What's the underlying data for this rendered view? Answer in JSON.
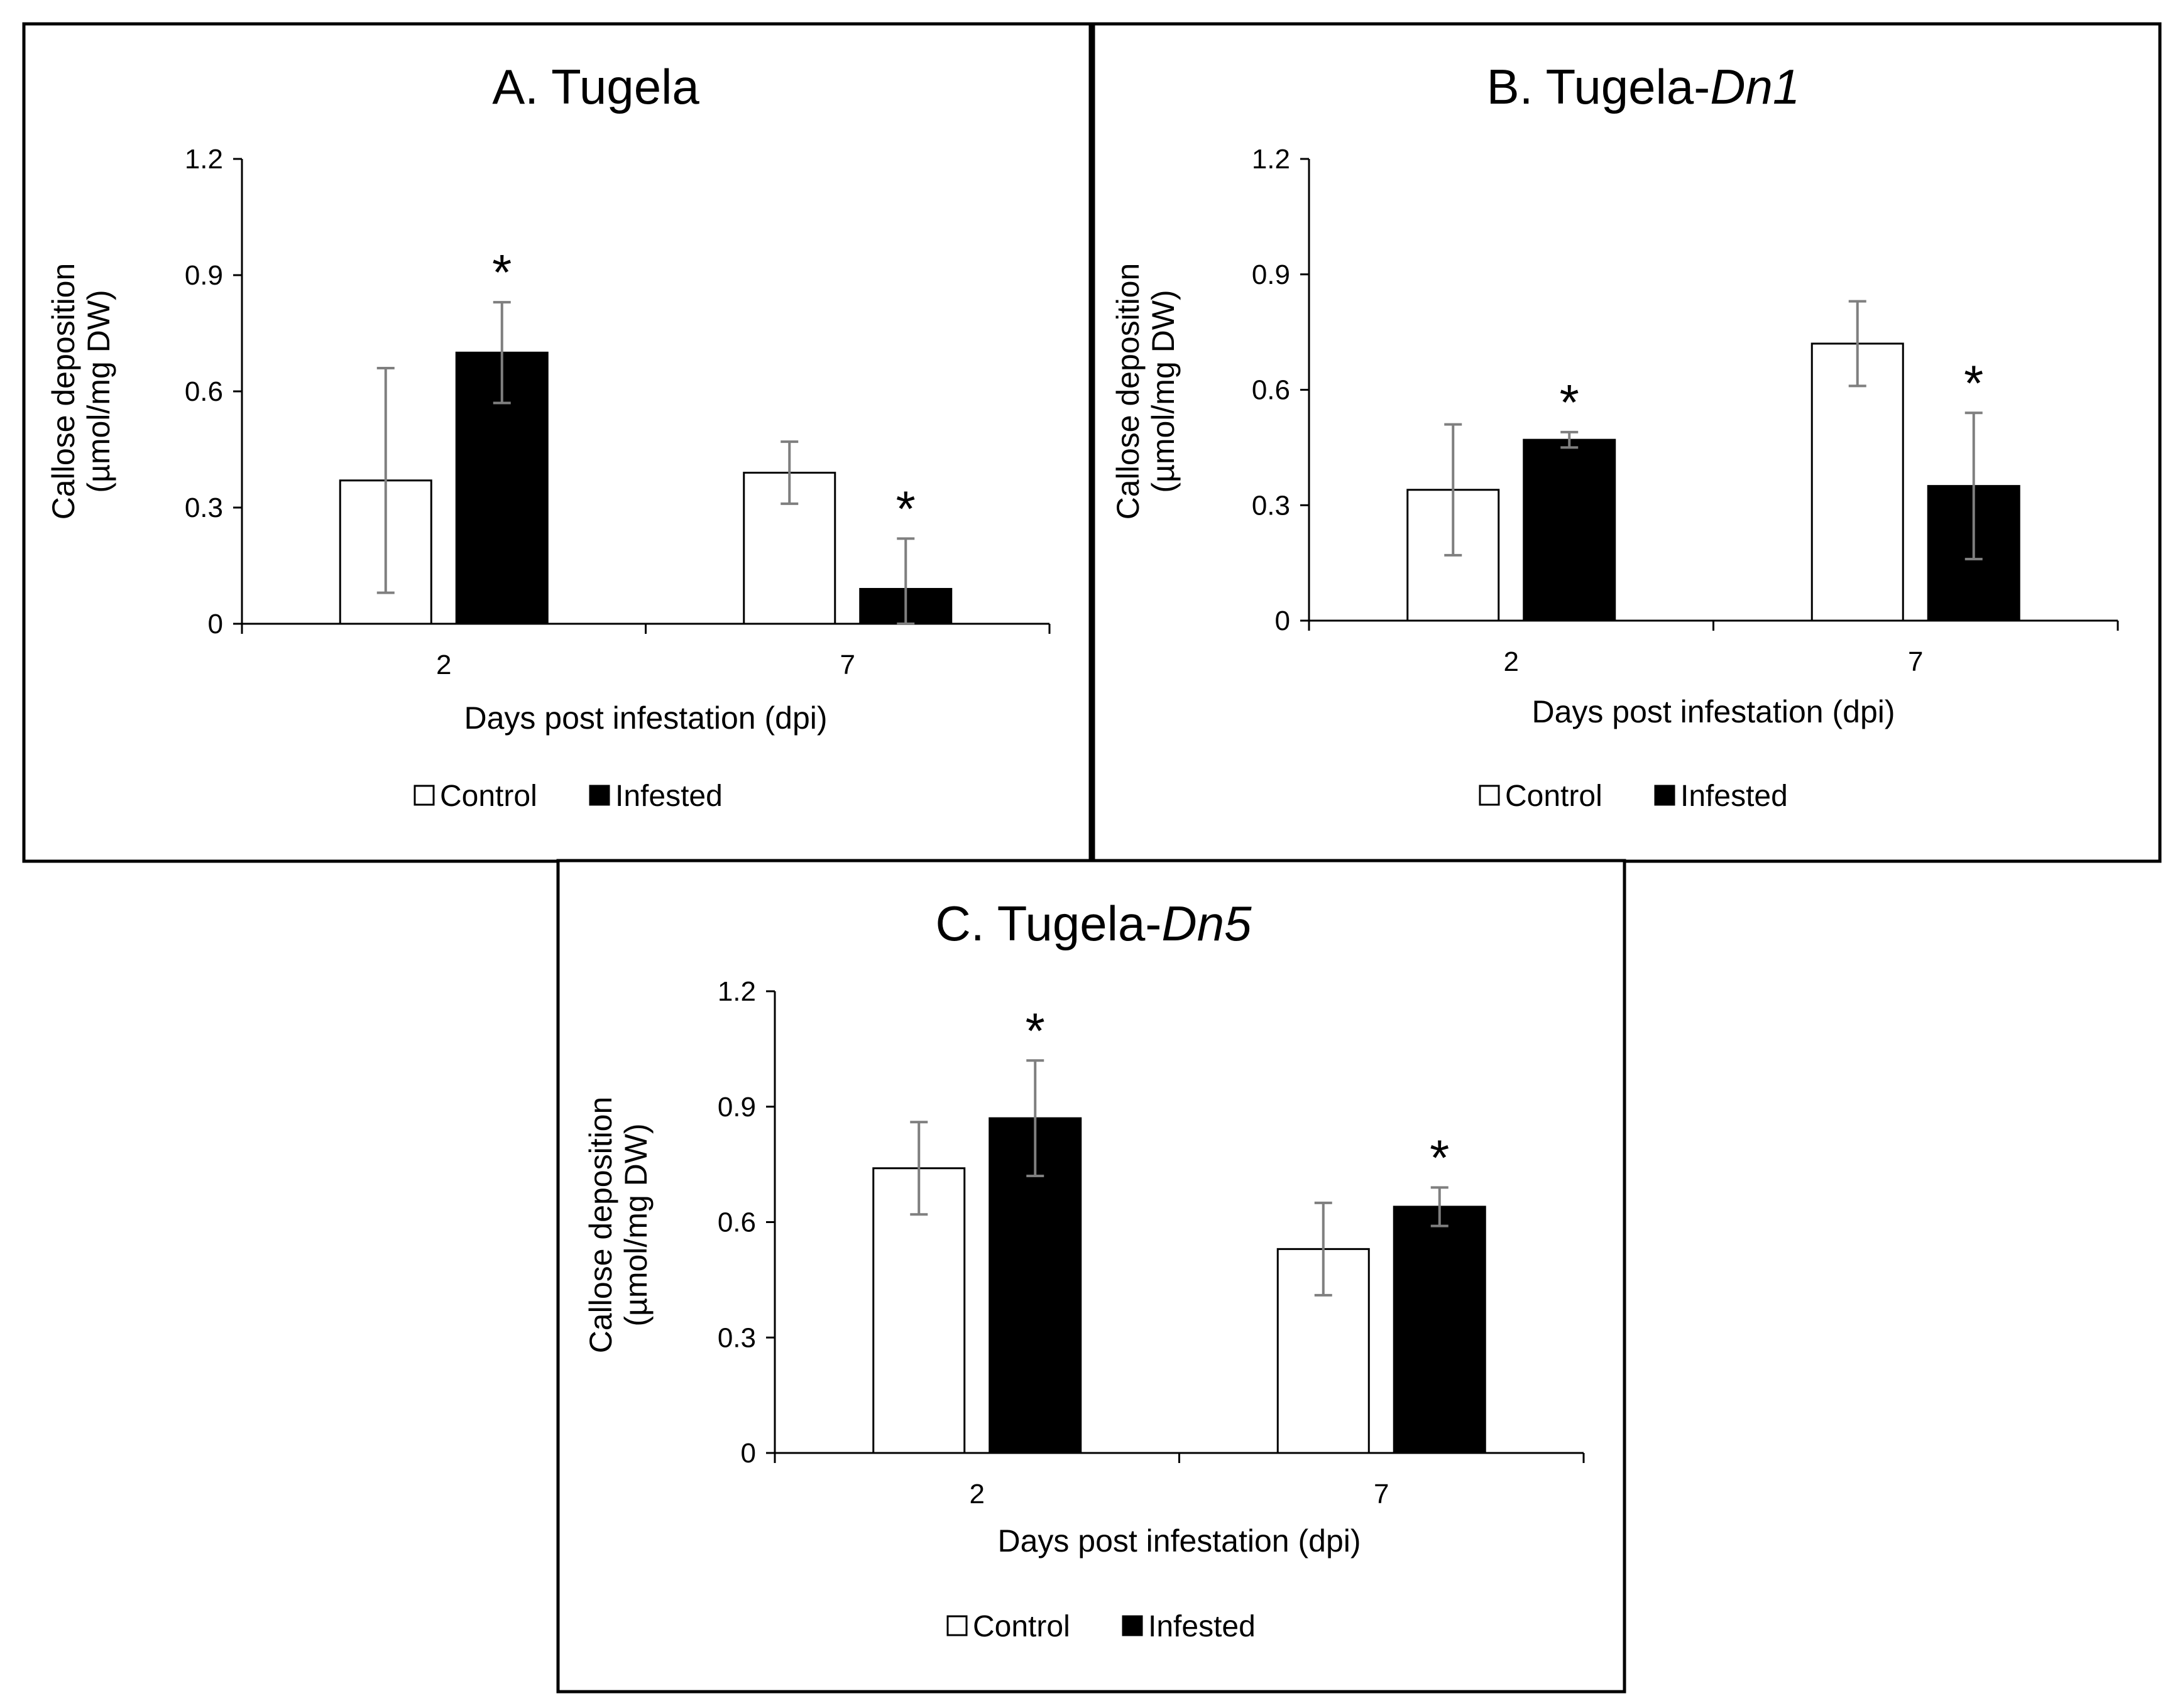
{
  "colors": {
    "control": "#ffffff",
    "infested": "#000000",
    "error_bar": "#7f7f7f",
    "frame": "#000000"
  },
  "chart_data": [
    {
      "id": "A",
      "type": "bar",
      "title": "A. Tugela",
      "title_italic": "",
      "xlabel": "Days post infestation (dpi)",
      "ylabel_line1": "Callose deposition",
      "ylabel_line2": "(µmol/mg DW)",
      "ylim": [
        0,
        1.2
      ],
      "yticks": [
        "0",
        "0.3",
        "0.6",
        "0.9",
        "1.2"
      ],
      "categories": [
        "2",
        "7"
      ],
      "series": [
        {
          "name": "Control",
          "values": [
            0.37,
            0.39
          ],
          "errors": [
            0.29,
            0.08
          ],
          "significant": [
            false,
            false
          ]
        },
        {
          "name": "Infested",
          "values": [
            0.7,
            0.09
          ],
          "errors": [
            0.13,
            0.13
          ],
          "significant": [
            true,
            true
          ]
        }
      ],
      "sig_symbol": "*",
      "legend": [
        "Control",
        "Infested"
      ]
    },
    {
      "id": "B",
      "type": "bar",
      "title": "B. Tugela-",
      "title_italic": "Dn1",
      "xlabel": "Days post infestation (dpi)",
      "ylabel_line1": "Callose deposition",
      "ylabel_line2": "(µmol/mg DW)",
      "ylim": [
        0,
        1.2
      ],
      "yticks": [
        "0",
        "0.3",
        "0.6",
        "0.9",
        "1.2"
      ],
      "categories": [
        "2",
        "7"
      ],
      "series": [
        {
          "name": "Control",
          "values": [
            0.34,
            0.72
          ],
          "errors": [
            0.17,
            0.11
          ],
          "significant": [
            false,
            false
          ]
        },
        {
          "name": "Infested",
          "values": [
            0.47,
            0.35
          ],
          "errors": [
            0.02,
            0.19
          ],
          "significant": [
            true,
            true
          ]
        }
      ],
      "sig_symbol": "*",
      "legend": [
        "Control",
        "Infested"
      ]
    },
    {
      "id": "C",
      "type": "bar",
      "title": "C. Tugela-",
      "title_italic": "Dn5",
      "xlabel": "Days post infestation (dpi)",
      "ylabel_line1": "Callose deposition",
      "ylabel_line2": "(µmol/mg DW)",
      "ylim": [
        0,
        1.2
      ],
      "yticks": [
        "0",
        "0.3",
        "0.6",
        "0.9",
        "1.2"
      ],
      "categories": [
        "2",
        "7"
      ],
      "series": [
        {
          "name": "Control",
          "values": [
            0.74,
            0.53
          ],
          "errors": [
            0.12,
            0.12
          ],
          "significant": [
            false,
            false
          ]
        },
        {
          "name": "Infested",
          "values": [
            0.87,
            0.64
          ],
          "errors": [
            0.15,
            0.05
          ],
          "significant": [
            true,
            true
          ]
        }
      ],
      "sig_symbol": "*",
      "legend": [
        "Control",
        "Infested"
      ]
    }
  ]
}
